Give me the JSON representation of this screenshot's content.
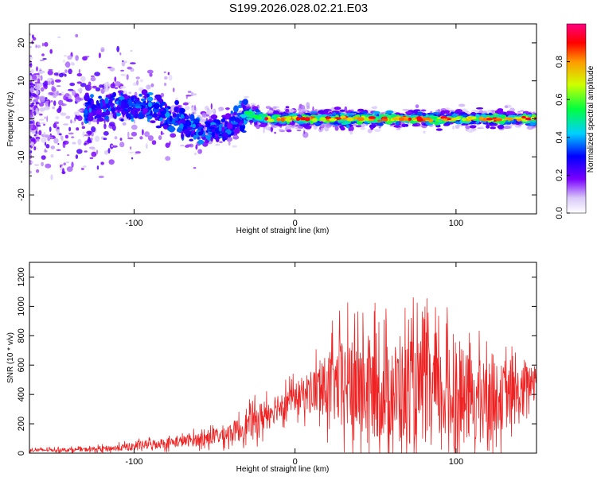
{
  "title": "S199.2026.028.02.21.E03",
  "chart_data": [
    {
      "type": "heatmap",
      "xlabel": "Height of straight line (km)",
      "ylabel": "Frequency (Hz)",
      "xlim": [
        -165,
        150
      ],
      "ylim": [
        -25,
        25
      ],
      "xticks": [
        -100,
        0,
        100
      ],
      "yticks": [
        -20,
        -10,
        0,
        10,
        20
      ],
      "colorbar": {
        "label": "Normalized spectral amplitude",
        "range": [
          0.0,
          1.0
        ],
        "ticks": [
          "0.0",
          "0.2",
          "0.4",
          "0.6",
          "0.8"
        ],
        "tick_values": [
          0.0,
          0.2,
          0.4,
          0.6,
          0.8
        ]
      },
      "ridge": {
        "description_points_x": [
          -120,
          -90,
          -60,
          -45,
          -30,
          -20,
          0,
          50,
          100,
          150
        ],
        "description_points_freq": [
          3,
          3,
          -3,
          -3,
          1.5,
          0,
          0,
          0,
          0,
          0
        ]
      }
    },
    {
      "type": "line",
      "xlabel": "Height of straight line (km)",
      "ylabel": "SNR (10 * v/v)",
      "xlim": [
        -165,
        150
      ],
      "ylim": [
        0,
        1300
      ],
      "xticks": [
        -100,
        0,
        100
      ],
      "yticks": [
        0,
        200,
        400,
        600,
        800,
        1000,
        1200
      ],
      "line_color": "#ee2222",
      "envelope": {
        "x": [
          -165,
          -130,
          -110,
          -90,
          -70,
          -50,
          -35,
          -20,
          -10,
          0,
          10,
          20,
          30,
          40,
          50,
          60,
          70,
          80,
          90,
          100,
          110,
          120,
          130,
          140,
          150
        ],
        "base": [
          20,
          25,
          35,
          60,
          80,
          110,
          160,
          250,
          330,
          380,
          420,
          450,
          470,
          450,
          430,
          420,
          420,
          420,
          400,
          380,
          380,
          380,
          380,
          390,
          550
        ],
        "spread": [
          20,
          25,
          40,
          60,
          70,
          100,
          140,
          200,
          180,
          170,
          280,
          400,
          550,
          650,
          600,
          600,
          650,
          650,
          600,
          650,
          500,
          450,
          400,
          350,
          150
        ]
      }
    }
  ]
}
